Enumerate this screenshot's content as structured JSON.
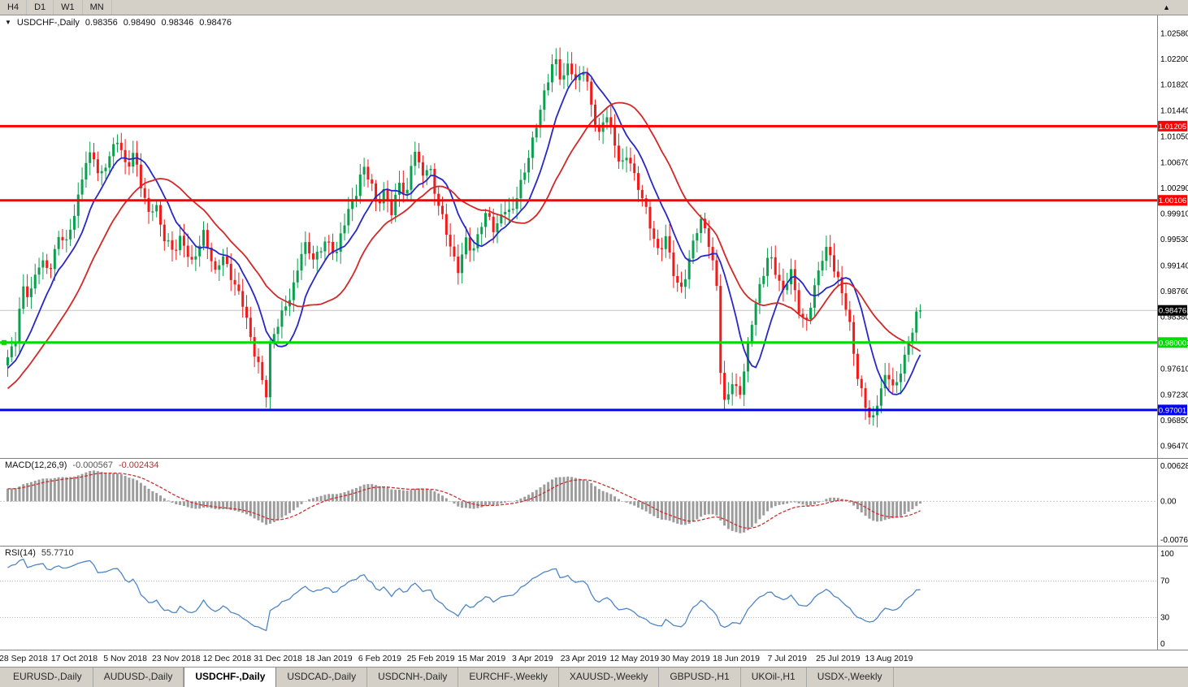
{
  "toolbar": {
    "timeframes": [
      "H4",
      "D1",
      "W1",
      "MN"
    ],
    "scroll_button_glyph": "▲"
  },
  "chart": {
    "title": {
      "marker": "▼",
      "symbol_period": "USDCHF-,Daily",
      "open": "0.98356",
      "high": "0.98490",
      "low": "0.98346",
      "close": "0.98476"
    },
    "price_axis": {
      "min": 0.9647,
      "max": 1.0258,
      "labels": [
        "1.02580",
        "1.02200",
        "1.01820",
        "1.01440",
        "1.01050",
        "1.00670",
        "1.00290",
        "0.99910",
        "0.99530",
        "0.99140",
        "0.98760",
        "0.98380",
        "0.97990",
        "0.97610",
        "0.97230",
        "0.96850",
        "0.96470"
      ]
    },
    "hlines": [
      {
        "label": "1.01205",
        "price": 1.01205,
        "color": "#FF0000"
      },
      {
        "label": "1.00106",
        "price": 1.00106,
        "color": "#FF0000"
      },
      {
        "label": "0.98000",
        "price": 0.98,
        "color": "#00DC00"
      },
      {
        "label": "0.97001",
        "price": 0.97001,
        "color": "#0000FF"
      }
    ],
    "current_price": {
      "label": "0.98476",
      "price": 0.98476
    },
    "colors": {
      "up": "#0AA04E",
      "down": "#F31A1A",
      "ma_fast": "#2828C8",
      "ma_slow": "#D22828",
      "bid_line": "#C4C4C4",
      "axis_line": "#808080"
    }
  },
  "macd": {
    "title": "MACD(12,26,9)",
    "value_main": "-0.000567",
    "value_signal": "-0.002434",
    "axis_labels": {
      "top": "0.00628",
      "zero": "0.00",
      "bottom": "-0.00762"
    },
    "histogram_color": "#9C9C9C",
    "signal_color": "#CC2F2F",
    "params": {
      "fast": 12,
      "slow": 26,
      "signal": 9
    }
  },
  "rsi": {
    "title": "RSI(14)",
    "value": "55.7710",
    "period": 14,
    "levels": [
      100,
      70,
      30,
      0
    ],
    "axis_labels": [
      "100",
      "70",
      "30",
      "0"
    ],
    "color": "#4F86C6",
    "level_line_color": "#B0B0B0"
  },
  "date_axis": {
    "labels": [
      "28 Sep 2018",
      "17 Oct 2018",
      "5 Nov 2018",
      "23 Nov 2018",
      "12 Dec 2018",
      "31 Dec 2018",
      "18 Jan 2019",
      "6 Feb 2019",
      "25 Feb 2019",
      "15 Mar 2019",
      "3 Apr 2019",
      "23 Apr 2019",
      "12 May 2019",
      "30 May 2019",
      "18 Jun 2019",
      "7 Jul 2019",
      "25 Jul 2019",
      "13 Aug 2019"
    ]
  },
  "tabs": {
    "active_index": 2,
    "items": [
      {
        "label": "EURUSD-,Daily"
      },
      {
        "label": "AUDUSD-,Daily"
      },
      {
        "label": "USDCHF-,Daily"
      },
      {
        "label": "USDCAD-,Daily"
      },
      {
        "label": "USDCNH-,Daily"
      },
      {
        "label": "EURCHF-,Weekly"
      },
      {
        "label": "XAUUSD-,Weekly"
      },
      {
        "label": "GBPUSD-,H1"
      },
      {
        "label": "UKOil-,H1"
      },
      {
        "label": "USDX-,Weekly"
      }
    ]
  },
  "chart_data": {
    "type": "candlestick",
    "symbol": "USDCHF",
    "timeframe": "Daily",
    "candle_count": 234,
    "current_bar": {
      "open": 0.98356,
      "high": 0.9849,
      "low": 0.98346,
      "close": 0.98476
    },
    "indicator_values": {
      "macd_main": -0.000567,
      "macd_signal": -0.002434,
      "rsi": 55.771
    },
    "close_waypoints": [
      [
        0.0,
        0.9775
      ],
      [
        0.008,
        0.98
      ],
      [
        0.016,
        0.9885
      ],
      [
        0.024,
        0.987
      ],
      [
        0.036,
        0.992
      ],
      [
        0.045,
        0.9905
      ],
      [
        0.057,
        0.9965
      ],
      [
        0.065,
        0.9945
      ],
      [
        0.077,
        1.001
      ],
      [
        0.085,
        1.007
      ],
      [
        0.093,
        1.0085
      ],
      [
        0.101,
        1.004
      ],
      [
        0.109,
        1.0065
      ],
      [
        0.121,
        1.0105
      ],
      [
        0.13,
        1.006
      ],
      [
        0.138,
        1.008
      ],
      [
        0.146,
        1.003
      ],
      [
        0.154,
        0.999
      ],
      [
        0.162,
        1.001
      ],
      [
        0.17,
        0.996
      ],
      [
        0.182,
        0.993
      ],
      [
        0.19,
        0.9955
      ],
      [
        0.202,
        0.992
      ],
      [
        0.215,
        0.996
      ],
      [
        0.227,
        0.99
      ],
      [
        0.235,
        0.9935
      ],
      [
        0.247,
        0.989
      ],
      [
        0.259,
        0.985
      ],
      [
        0.267,
        0.98
      ],
      [
        0.275,
        0.977
      ],
      [
        0.283,
        0.972
      ],
      [
        0.287,
        0.979
      ],
      [
        0.3,
        0.984
      ],
      [
        0.312,
        0.988
      ],
      [
        0.324,
        0.9945
      ],
      [
        0.336,
        0.992
      ],
      [
        0.348,
        0.9955
      ],
      [
        0.36,
        0.993
      ],
      [
        0.372,
        0.999
      ],
      [
        0.381,
        1.002
      ],
      [
        0.389,
        1.0065
      ],
      [
        0.397,
        1.004
      ],
      [
        0.405,
        1.0
      ],
      [
        0.413,
        1.0025
      ],
      [
        0.421,
        0.9995
      ],
      [
        0.429,
        1.004
      ],
      [
        0.437,
        1.001
      ],
      [
        0.445,
        1.009
      ],
      [
        0.453,
        1.005
      ],
      [
        0.462,
        1.0065
      ],
      [
        0.47,
        1.001
      ],
      [
        0.478,
        0.9975
      ],
      [
        0.486,
        0.9935
      ],
      [
        0.494,
        0.991
      ],
      [
        0.502,
        0.9955
      ],
      [
        0.51,
        0.993
      ],
      [
        0.518,
        0.997
      ],
      [
        0.526,
        0.9995
      ],
      [
        0.534,
        0.9965
      ],
      [
        0.543,
        1.0
      ],
      [
        0.551,
        0.9985
      ],
      [
        0.559,
        1.002
      ],
      [
        0.567,
        1.006
      ],
      [
        0.575,
        1.01
      ],
      [
        0.583,
        1.014
      ],
      [
        0.591,
        1.018
      ],
      [
        0.599,
        1.0225
      ],
      [
        0.607,
        1.019
      ],
      [
        0.615,
        1.0215
      ],
      [
        0.623,
        1.018
      ],
      [
        0.632,
        1.0205
      ],
      [
        0.64,
        1.015
      ],
      [
        0.648,
        1.011
      ],
      [
        0.656,
        1.014
      ],
      [
        0.664,
        1.0095
      ],
      [
        0.672,
        1.006
      ],
      [
        0.68,
        1.0085
      ],
      [
        0.688,
        1.004
      ],
      [
        0.696,
        1.001
      ],
      [
        0.704,
        0.997
      ],
      [
        0.713,
        0.9935
      ],
      [
        0.721,
        0.996
      ],
      [
        0.729,
        0.9905
      ],
      [
        0.737,
        0.987
      ],
      [
        0.745,
        0.991
      ],
      [
        0.753,
        0.9965
      ],
      [
        0.761,
        0.9985
      ],
      [
        0.769,
        0.994
      ],
      [
        0.777,
        0.988
      ],
      [
        0.781,
        0.976
      ],
      [
        0.785,
        0.971
      ],
      [
        0.794,
        0.9745
      ],
      [
        0.802,
        0.972
      ],
      [
        0.81,
        0.978
      ],
      [
        0.818,
        0.985
      ],
      [
        0.826,
        0.9895
      ],
      [
        0.834,
        0.9935
      ],
      [
        0.842,
        0.99
      ],
      [
        0.85,
        0.987
      ],
      [
        0.858,
        0.991
      ],
      [
        0.866,
        0.9855
      ],
      [
        0.874,
        0.9825
      ],
      [
        0.883,
        0.987
      ],
      [
        0.891,
        0.992
      ],
      [
        0.899,
        0.9945
      ],
      [
        0.907,
        0.9905
      ],
      [
        0.915,
        0.987
      ],
      [
        0.923,
        0.982
      ],
      [
        0.931,
        0.975
      ],
      [
        0.939,
        0.9715
      ],
      [
        0.947,
        0.968
      ],
      [
        0.955,
        0.972
      ],
      [
        0.964,
        0.9755
      ],
      [
        0.972,
        0.973
      ],
      [
        0.98,
        0.977
      ],
      [
        0.988,
        0.98
      ],
      [
        0.996,
        0.984
      ],
      [
        1.0,
        0.98476
      ]
    ]
  }
}
